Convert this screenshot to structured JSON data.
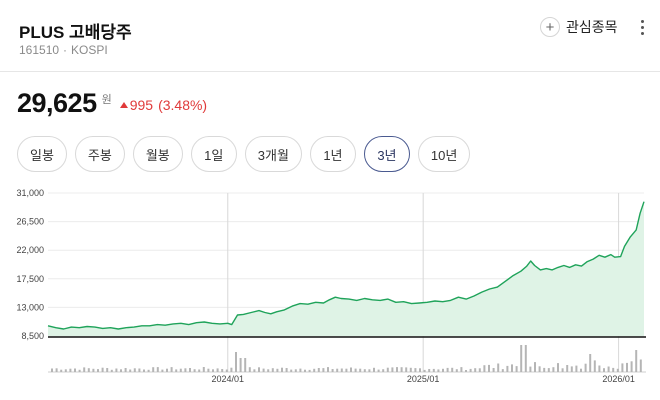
{
  "header": {
    "title": "PLUS 고배당주",
    "code": "161510",
    "separator": "·",
    "market": "KOSPI",
    "favorite_plus": "+",
    "favorite_label": "관심종목",
    "more_icon": "more-vertical-icon"
  },
  "quote": {
    "price": "29,625",
    "unit": "원",
    "change": "995",
    "change_pct": "(3.48%)",
    "direction": "up",
    "up_color": "#e03a3a"
  },
  "periods": [
    {
      "label": "일봉",
      "active": false
    },
    {
      "label": "주봉",
      "active": false
    },
    {
      "label": "월봉",
      "active": false
    },
    {
      "label": "1일",
      "active": false
    },
    {
      "label": "3개월",
      "active": false
    },
    {
      "label": "1년",
      "active": false
    },
    {
      "label": "3년",
      "active": true
    },
    {
      "label": "10년",
      "active": false
    }
  ],
  "chart_data": {
    "type": "area",
    "series_color": "#1fa35a",
    "fill_color": "#dff3e6",
    "ylim": [
      8500,
      31000
    ],
    "y_ticks": [
      {
        "value": 31000,
        "label": "31,000"
      },
      {
        "value": 26500,
        "label": "26,500"
      },
      {
        "value": 22000,
        "label": "22,000"
      },
      {
        "value": 17500,
        "label": "17,500"
      },
      {
        "value": 13000,
        "label": "13,000"
      },
      {
        "value": 8500,
        "label": "8,500"
      }
    ],
    "x_ticks": [
      {
        "value": 2024.0,
        "label": "2024/01"
      },
      {
        "value": 2025.0,
        "label": "2025/01"
      },
      {
        "value": 2026.0,
        "label": "2026/01"
      }
    ],
    "xlim": [
      2023.08,
      2026.13
    ],
    "points": [
      [
        2023.08,
        10100
      ],
      [
        2023.12,
        9800
      ],
      [
        2023.16,
        9600
      ],
      [
        2023.2,
        9900
      ],
      [
        2023.24,
        9800
      ],
      [
        2023.28,
        10000
      ],
      [
        2023.32,
        9900
      ],
      [
        2023.36,
        9700
      ],
      [
        2023.4,
        9800
      ],
      [
        2023.44,
        9600
      ],
      [
        2023.48,
        9800
      ],
      [
        2023.52,
        9900
      ],
      [
        2023.56,
        10100
      ],
      [
        2023.6,
        10100
      ],
      [
        2023.64,
        10300
      ],
      [
        2023.68,
        10200
      ],
      [
        2023.72,
        10400
      ],
      [
        2023.76,
        10500
      ],
      [
        2023.8,
        10300
      ],
      [
        2023.84,
        10600
      ],
      [
        2023.88,
        10700
      ],
      [
        2023.92,
        10500
      ],
      [
        2023.96,
        10400
      ],
      [
        2024.0,
        10500
      ],
      [
        2024.02,
        10300
      ],
      [
        2024.05,
        11800
      ],
      [
        2024.08,
        11900
      ],
      [
        2024.12,
        12200
      ],
      [
        2024.16,
        12500
      ],
      [
        2024.19,
        12200
      ],
      [
        2024.22,
        12000
      ],
      [
        2024.25,
        12300
      ],
      [
        2024.29,
        12600
      ],
      [
        2024.33,
        13200
      ],
      [
        2024.37,
        13600
      ],
      [
        2024.41,
        13500
      ],
      [
        2024.45,
        13800
      ],
      [
        2024.49,
        13700
      ],
      [
        2024.52,
        14200
      ],
      [
        2024.55,
        14600
      ],
      [
        2024.58,
        14400
      ],
      [
        2024.62,
        14300
      ],
      [
        2024.66,
        14100
      ],
      [
        2024.7,
        14400
      ],
      [
        2024.74,
        14200
      ],
      [
        2024.78,
        14100
      ],
      [
        2024.82,
        14300
      ],
      [
        2024.86,
        13800
      ],
      [
        2024.9,
        13900
      ],
      [
        2024.94,
        13600
      ],
      [
        2024.98,
        13700
      ],
      [
        2025.02,
        13800
      ],
      [
        2025.06,
        14000
      ],
      [
        2025.1,
        13900
      ],
      [
        2025.14,
        14100
      ],
      [
        2025.18,
        14600
      ],
      [
        2025.22,
        14300
      ],
      [
        2025.26,
        14800
      ],
      [
        2025.3,
        15400
      ],
      [
        2025.34,
        15900
      ],
      [
        2025.38,
        16200
      ],
      [
        2025.42,
        17100
      ],
      [
        2025.46,
        18000
      ],
      [
        2025.5,
        18700
      ],
      [
        2025.53,
        19500
      ],
      [
        2025.55,
        20300
      ],
      [
        2025.57,
        19600
      ],
      [
        2025.6,
        18900
      ],
      [
        2025.63,
        19100
      ],
      [
        2025.66,
        18900
      ],
      [
        2025.69,
        19300
      ],
      [
        2025.72,
        19600
      ],
      [
        2025.75,
        19300
      ],
      [
        2025.78,
        19700
      ],
      [
        2025.81,
        19500
      ],
      [
        2025.84,
        20200
      ],
      [
        2025.87,
        20600
      ],
      [
        2025.9,
        21200
      ],
      [
        2025.93,
        20900
      ],
      [
        2025.96,
        21300
      ],
      [
        2025.98,
        20900
      ],
      [
        2026.01,
        21000
      ],
      [
        2026.03,
        22600
      ],
      [
        2026.06,
        24100
      ],
      [
        2026.09,
        25200
      ],
      [
        2026.11,
        27800
      ],
      [
        2026.13,
        29625
      ]
    ]
  }
}
